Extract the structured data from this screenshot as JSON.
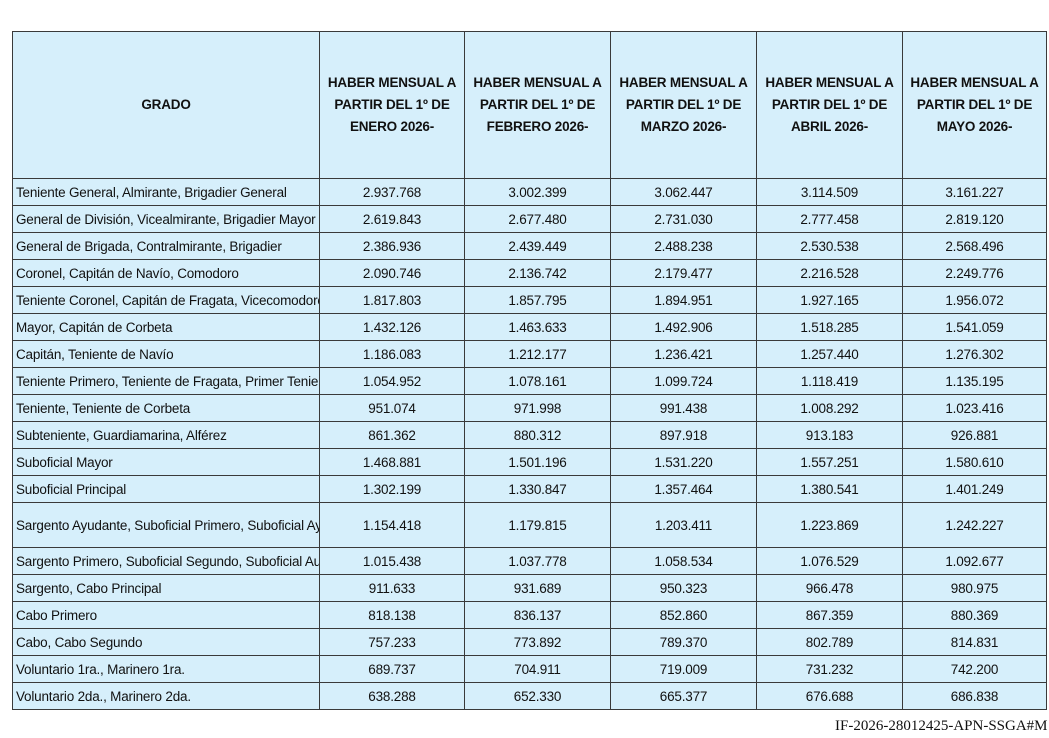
{
  "table": {
    "headers": [
      "GRADO",
      "HABER MENSUAL A PARTIR DEL 1º DE ENERO 2026-",
      "HABER MENSUAL A PARTIR DEL 1º DE FEBRERO 2026-",
      "HABER MENSUAL A PARTIR DEL 1º DE MARZO 2026-",
      "HABER MENSUAL A PARTIR DEL 1º DE ABRIL 2026-",
      "HABER MENSUAL A PARTIR DEL 1º DE MAYO 2026-"
    ],
    "rows": [
      {
        "grado": "Teniente General, Almirante, Brigadier General",
        "values": [
          "2.937.768",
          "3.002.399",
          "3.062.447",
          "3.114.509",
          "3.161.227"
        ]
      },
      {
        "grado": "General de División, Vicealmirante, Brigadier Mayor",
        "values": [
          "2.619.843",
          "2.677.480",
          "2.731.030",
          "2.777.458",
          "2.819.120"
        ]
      },
      {
        "grado": "General de Brigada, Contralmirante, Brigadier",
        "values": [
          "2.386.936",
          "2.439.449",
          "2.488.238",
          "2.530.538",
          "2.568.496"
        ]
      },
      {
        "grado": "Coronel, Capitán de Navío, Comodoro",
        "values": [
          "2.090.746",
          "2.136.742",
          "2.179.477",
          "2.216.528",
          "2.249.776"
        ]
      },
      {
        "grado": "Teniente Coronel, Capitán de Fragata, Vicecomodoro",
        "values": [
          "1.817.803",
          "1.857.795",
          "1.894.951",
          "1.927.165",
          "1.956.072"
        ]
      },
      {
        "grado": "Mayor, Capitán de Corbeta",
        "values": [
          "1.432.126",
          "1.463.633",
          "1.492.906",
          "1.518.285",
          "1.541.059"
        ]
      },
      {
        "grado": "Capitán, Teniente de Navío",
        "values": [
          "1.186.083",
          "1.212.177",
          "1.236.421",
          "1.257.440",
          "1.276.302"
        ]
      },
      {
        "grado": "Teniente Primero, Teniente de Fragata, Primer Teniente",
        "values": [
          "1.054.952",
          "1.078.161",
          "1.099.724",
          "1.118.419",
          "1.135.195"
        ]
      },
      {
        "grado": "Teniente, Teniente de Corbeta",
        "values": [
          "951.074",
          "971.998",
          "991.438",
          "1.008.292",
          "1.023.416"
        ]
      },
      {
        "grado": "Subteniente, Guardiamarina, Alférez",
        "values": [
          "861.362",
          "880.312",
          "897.918",
          "913.183",
          "926.881"
        ]
      },
      {
        "grado": "Suboficial Mayor",
        "values": [
          "1.468.881",
          "1.501.196",
          "1.531.220",
          "1.557.251",
          "1.580.610"
        ]
      },
      {
        "grado": "Suboficial Principal",
        "values": [
          "1.302.199",
          "1.330.847",
          "1.357.464",
          "1.380.541",
          "1.401.249"
        ]
      },
      {
        "grado": "Sargento Ayudante, Suboficial Primero, Suboficial Ayudante",
        "values": [
          "1.154.418",
          "1.179.815",
          "1.203.411",
          "1.223.869",
          "1.242.227"
        ],
        "tall": true
      },
      {
        "grado": "Sargento Primero, Suboficial Segundo, Suboficial Auxiliar",
        "values": [
          "1.015.438",
          "1.037.778",
          "1.058.534",
          "1.076.529",
          "1.092.677"
        ]
      },
      {
        "grado": "Sargento, Cabo Principal",
        "values": [
          "911.633",
          "931.689",
          "950.323",
          "966.478",
          "980.975"
        ]
      },
      {
        "grado": "Cabo Primero",
        "values": [
          "818.138",
          "836.137",
          "852.860",
          "867.359",
          "880.369"
        ]
      },
      {
        "grado": "Cabo, Cabo Segundo",
        "values": [
          "757.233",
          "773.892",
          "789.370",
          "802.789",
          "814.831"
        ]
      },
      {
        "grado": "Voluntario 1ra., Marinero 1ra.",
        "values": [
          "689.737",
          "704.911",
          "719.009",
          "731.232",
          "742.200"
        ]
      },
      {
        "grado": "Voluntario 2da., Marinero 2da.",
        "values": [
          "638.288",
          "652.330",
          "665.377",
          "676.688",
          "686.838"
        ]
      }
    ]
  },
  "footer": {
    "reference": "IF-2026-28012425-APN-SSGA#M"
  },
  "colors": {
    "cell_background": "#d6effb",
    "border": "#3a3a3a"
  }
}
